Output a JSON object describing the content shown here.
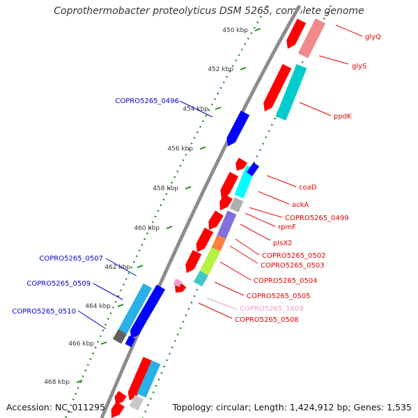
{
  "title": "Coprothermobacter proteolyticus DSM 5265, complete genome",
  "footer": {
    "accession": "Accession: NC_011295",
    "summary": "Topology: circular; Length: 1,424,912 bp; Genes: 1,535"
  },
  "ticks": [
    "450 kbp",
    "452 kbp",
    "454 kbp",
    "456 kbp",
    "458 kbp",
    "460 kbp",
    "462 kbp",
    "464 kbp",
    "466 kbp",
    "468 kbp"
  ],
  "labels": [
    {
      "text": "glyQ",
      "color": "#e60000"
    },
    {
      "text": "glyS",
      "color": "#e60000"
    },
    {
      "text": "ppdK",
      "color": "#e60000"
    },
    {
      "text": "coaD",
      "color": "#e60000"
    },
    {
      "text": "ackA",
      "color": "#e60000"
    },
    {
      "text": "COPRO5265_0499",
      "color": "#e60000"
    },
    {
      "text": "rpmF",
      "color": "#e60000"
    },
    {
      "text": "plsX2",
      "color": "#e60000"
    },
    {
      "text": "COPRO5265_0502",
      "color": "#e60000"
    },
    {
      "text": "COPRO5265_0503",
      "color": "#e60000"
    },
    {
      "text": "COPRO5265_0504",
      "color": "#e60000"
    },
    {
      "text": "COPRO5265_0505",
      "color": "#e60000"
    },
    {
      "text": "COPRO5265_1609",
      "color": "#f0a0c8"
    },
    {
      "text": "COPRO5265_0508",
      "color": "#e60000"
    },
    {
      "text": "COPRO5265_0496",
      "color": "#0000cc"
    },
    {
      "text": "COPRO5265_0507",
      "color": "#0000cc"
    },
    {
      "text": "COPRO5265_0509",
      "color": "#0000cc"
    },
    {
      "text": "COPRO5265_0510",
      "color": "#0000cc"
    }
  ],
  "colors": {
    "forward_cds": "#ff0000",
    "reverse_cds": "#0000ff",
    "forward_cog": "#00cccc",
    "reverse_cog": "#2ab0e8",
    "backbone": "#8c8c8c",
    "gc_marks": "#1a8a1a"
  }
}
